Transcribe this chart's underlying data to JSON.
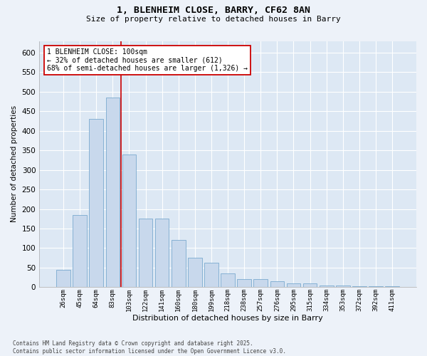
{
  "title_line1": "1, BLENHEIM CLOSE, BARRY, CF62 8AN",
  "title_line2": "Size of property relative to detached houses in Barry",
  "xlabel": "Distribution of detached houses by size in Barry",
  "ylabel": "Number of detached properties",
  "bar_color": "#c8d8ec",
  "bar_edge_color": "#7aaacf",
  "axes_bg_color": "#dde8f4",
  "fig_bg_color": "#edf2f9",
  "grid_color": "#ffffff",
  "vline_color": "#cc0000",
  "annotation_text": "1 BLENHEIM CLOSE: 100sqm\n← 32% of detached houses are smaller (612)\n68% of semi-detached houses are larger (1,326) →",
  "categories": [
    "26sqm",
    "45sqm",
    "64sqm",
    "83sqm",
    "103sqm",
    "122sqm",
    "141sqm",
    "160sqm",
    "180sqm",
    "199sqm",
    "218sqm",
    "238sqm",
    "257sqm",
    "276sqm",
    "295sqm",
    "315sqm",
    "334sqm",
    "353sqm",
    "372sqm",
    "392sqm",
    "411sqm"
  ],
  "values": [
    45,
    185,
    430,
    485,
    340,
    175,
    175,
    120,
    75,
    62,
    35,
    20,
    20,
    15,
    10,
    10,
    5,
    4,
    3,
    3,
    3
  ],
  "ylim": [
    0,
    630
  ],
  "yticks": [
    0,
    50,
    100,
    150,
    200,
    250,
    300,
    350,
    400,
    450,
    500,
    550,
    600
  ],
  "footnote": "Contains HM Land Registry data © Crown copyright and database right 2025.\nContains public sector information licensed under the Open Government Licence v3.0.",
  "bar_width": 0.85,
  "vline_category_idx": 4
}
